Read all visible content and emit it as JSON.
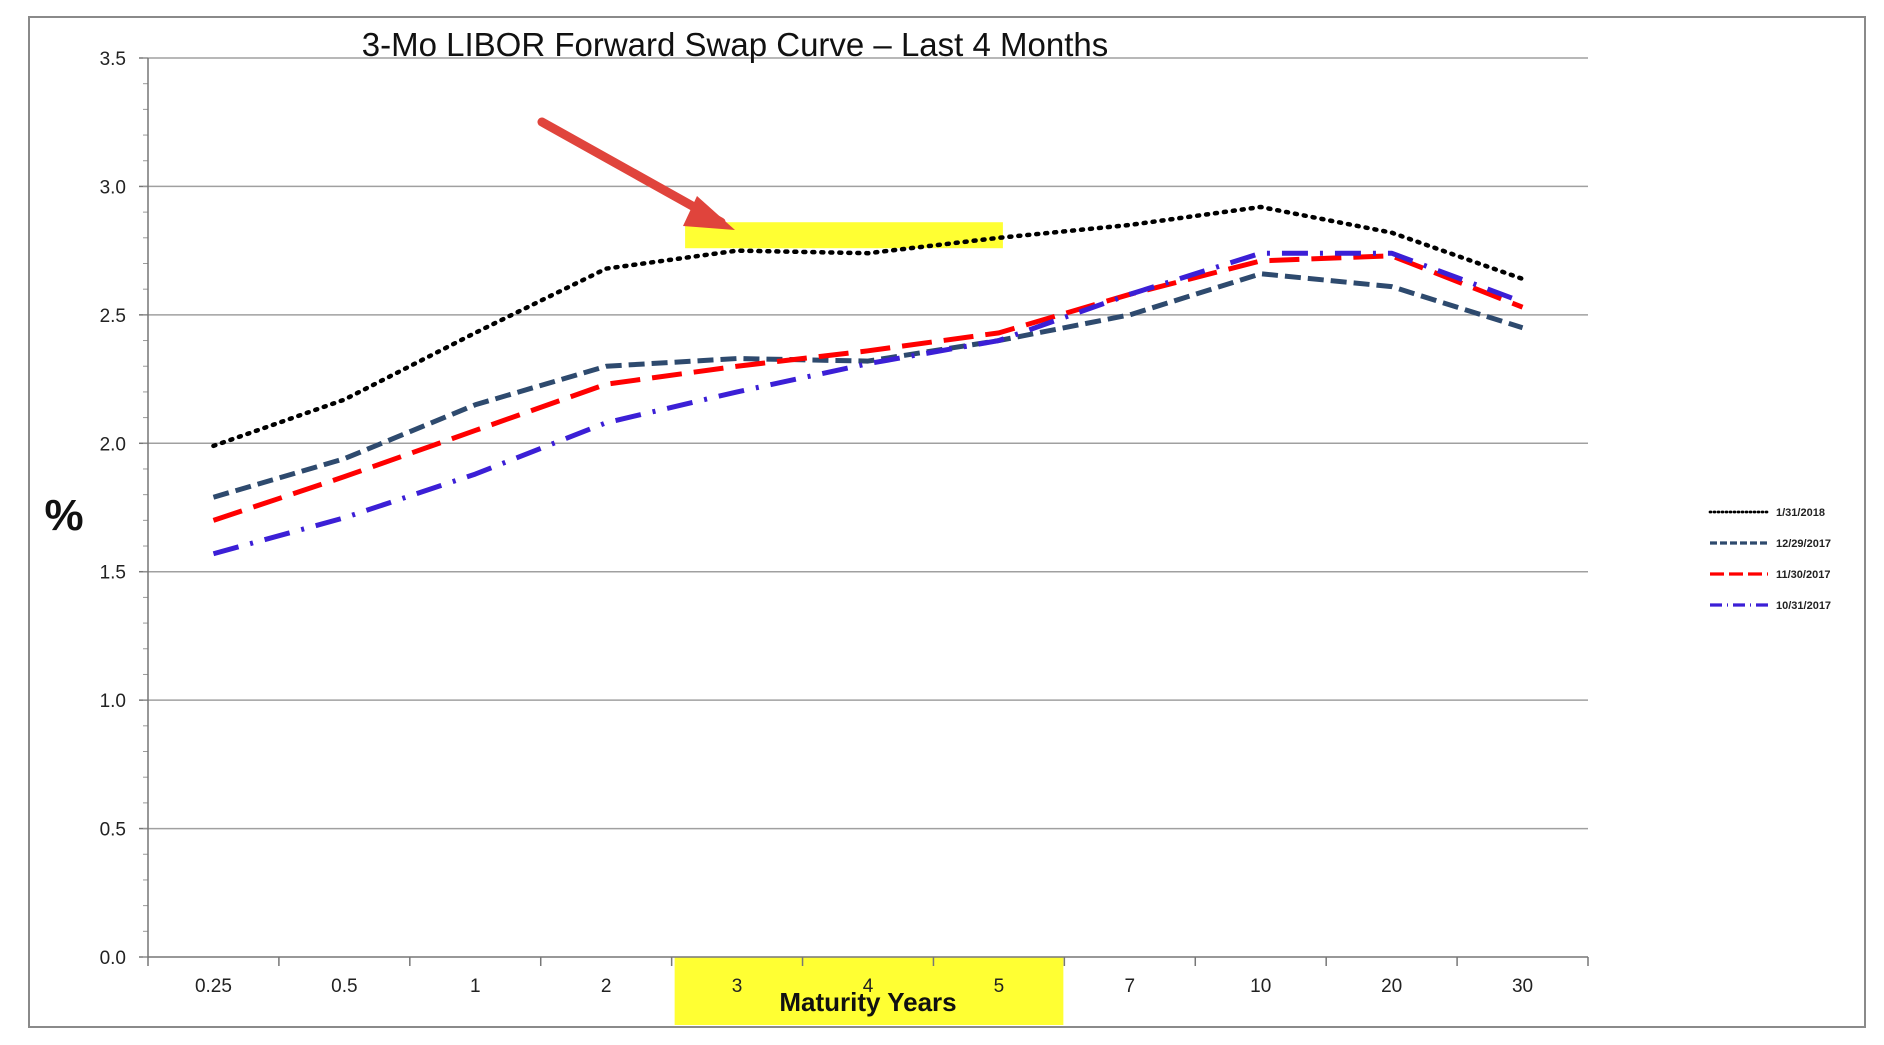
{
  "chart_data": {
    "type": "line",
    "title": "3-Mo LIBOR Forward Swap Curve – Last 4 Months",
    "xlabel": "Maturity Years",
    "ylabel": "%",
    "categories": [
      "0.25",
      "0.5",
      "1",
      "2",
      "3",
      "4",
      "5",
      "7",
      "10",
      "20",
      "30"
    ],
    "ylim": [
      0,
      3.5
    ],
    "yticks": [
      "0.0",
      "0.5",
      "1.0",
      "1.5",
      "2.0",
      "2.5",
      "3.0",
      "3.5"
    ],
    "grid": true,
    "legend_position": "right",
    "highlighted_categories": [
      "3",
      "4",
      "5"
    ],
    "series": [
      {
        "name": "1/31/2018",
        "color": "#000000",
        "style": "dotted",
        "values": [
          1.99,
          2.17,
          2.43,
          2.68,
          2.75,
          2.74,
          2.8,
          2.85,
          2.92,
          2.82,
          2.64
        ]
      },
      {
        "name": "12/29/2017",
        "color": "#2e4a6e",
        "style": "dashed",
        "values": [
          1.79,
          1.94,
          2.15,
          2.3,
          2.33,
          2.32,
          2.4,
          2.5,
          2.66,
          2.61,
          2.45
        ]
      },
      {
        "name": "11/30/2017",
        "color": "#ff0000",
        "style": "longdash",
        "values": [
          1.7,
          1.87,
          2.05,
          2.23,
          2.3,
          2.36,
          2.43,
          2.58,
          2.71,
          2.73,
          2.53
        ]
      },
      {
        "name": "10/31/2017",
        "color": "#3b1fd6",
        "style": "dashdot",
        "values": [
          1.57,
          1.71,
          1.88,
          2.08,
          2.2,
          2.31,
          2.4,
          2.58,
          2.74,
          2.74,
          2.55
        ]
      }
    ],
    "colors": {
      "highlight": "#ffff33",
      "arrow": "#e0443c",
      "grid": "#a0a0a0"
    }
  }
}
